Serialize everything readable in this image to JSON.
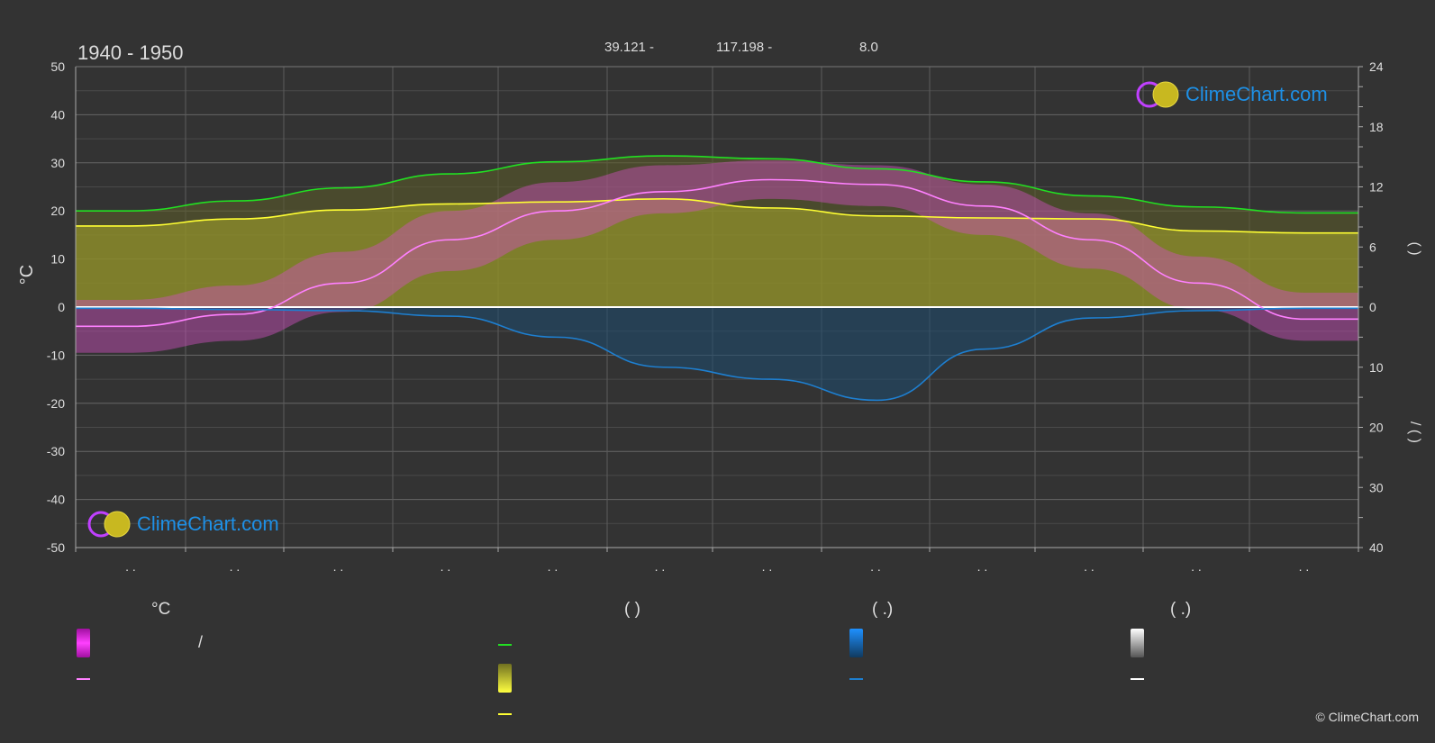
{
  "header": {
    "period": "1940 - 1950",
    "coords": [
      "39.121 -",
      "117.198 -",
      "8.0"
    ]
  },
  "logo": {
    "text": "ClimeChart.com"
  },
  "copyright": "© ClimeChart.com",
  "legend": {
    "temp_header": "°C",
    "sun_header": "(          )",
    "rain_header": "(   .)",
    "snow_header": "(   .)",
    "range_slash": "/"
  },
  "colors": {
    "temp_band": "#d21ad2",
    "temp_mean": "#ff80ff",
    "daylight": "#22e022",
    "sunshine_band": "#c8c832",
    "sunshine_line": "#ffff33",
    "rain": "#1e7fd0",
    "snow": "#ffffff",
    "background": "#333333"
  },
  "chart_data": {
    "type": "line",
    "months_tick_labels": [
      ". .",
      ". .",
      ". .",
      ". .",
      ". .",
      ". .",
      ". .",
      ". .",
      ". .",
      ". .",
      ". .",
      ". ."
    ],
    "left_axis": {
      "label": "°C",
      "ylim": [
        -50,
        50
      ],
      "ticks": [
        50,
        40,
        30,
        20,
        10,
        0,
        -10,
        -20,
        -30,
        -40,
        -50
      ]
    },
    "right_axis_top": {
      "ticks": [
        24,
        18,
        12,
        6,
        0
      ],
      "label": "(   )"
    },
    "right_axis_bottom": {
      "ticks": [
        10,
        20,
        30,
        40
      ],
      "label": "/   (  )"
    },
    "grid": true,
    "series": [
      {
        "key": "daylight",
        "axis": "hours",
        "values": [
          9.6,
          10.6,
          11.9,
          13.3,
          14.5,
          15.1,
          14.8,
          13.8,
          12.5,
          11.1,
          10.0,
          9.4
        ]
      },
      {
        "key": "sunshine",
        "axis": "hours",
        "values": [
          8.1,
          8.8,
          9.7,
          10.3,
          10.5,
          10.8,
          9.9,
          9.1,
          8.9,
          8.8,
          7.6,
          7.4
        ]
      },
      {
        "key": "temp_mean",
        "axis": "celsius",
        "values": [
          -4.0,
          -1.5,
          5.0,
          14.0,
          20.0,
          24.0,
          26.5,
          25.5,
          21.0,
          14.0,
          5.0,
          -2.5
        ]
      },
      {
        "key": "temp_max_band",
        "axis": "celsius",
        "values": [
          1.5,
          4.5,
          11.5,
          20.0,
          26.0,
          29.5,
          30.5,
          29.5,
          25.5,
          19.5,
          10.5,
          3.0
        ]
      },
      {
        "key": "temp_min_band",
        "axis": "celsius",
        "values": [
          -9.5,
          -7.0,
          -1.0,
          7.5,
          14.0,
          19.5,
          22.5,
          21.0,
          15.0,
          8.0,
          -0.5,
          -7.0
        ]
      },
      {
        "key": "rain",
        "axis": "mm",
        "values": [
          0.2,
          0.4,
          0.6,
          1.5,
          5.0,
          10.0,
          12.0,
          15.5,
          7.0,
          1.8,
          0.6,
          0.2
        ]
      }
    ]
  }
}
